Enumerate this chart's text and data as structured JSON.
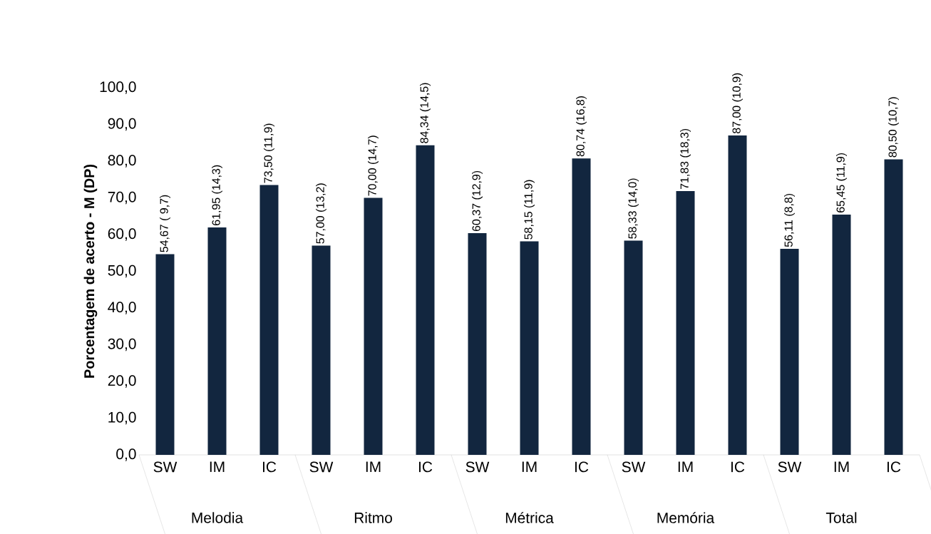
{
  "chart_data": {
    "type": "bar",
    "ylabel": "Porcentagem de acerto - M (DP)",
    "categories": [
      "SW",
      "IM",
      "IC",
      "SW",
      "IM",
      "IC",
      "SW",
      "IM",
      "IC",
      "SW",
      "IM",
      "IC",
      "SW",
      "IM",
      "IC"
    ],
    "values": [
      54.67,
      61.95,
      73.5,
      57.0,
      70.0,
      84.34,
      60.37,
      58.15,
      80.74,
      58.33,
      71.83,
      87.0,
      56.11,
      65.45,
      80.5
    ],
    "value_labels": [
      "54,67 ( 9,7)",
      "61,95 (14,3)",
      "73,50 (11,9)",
      "57,00 (13,2)",
      "70,00 (14,7)",
      "84,34 (14,5)",
      "60,37 (12,9)",
      "58,15 (11,9)",
      "80,74 (16,8)",
      "58,33 (14,0)",
      "71,83 (18,3)",
      "87,00 (10,9)",
      "56,11 (8,8)",
      "65,45 (11,9)",
      "80,50 (10,7)"
    ],
    "color": "#12263f",
    "annotations": [
      "Melodia",
      "Ritmo",
      "Métrica",
      "Memória",
      "Total"
    ],
    "ylim": [
      0,
      100
    ],
    "yticks": [
      {
        "value": 0,
        "label": "0,0"
      },
      {
        "value": 10,
        "label": "10,0"
      },
      {
        "value": 20,
        "label": "20,0"
      },
      {
        "value": 30,
        "label": "30,0"
      },
      {
        "value": 40,
        "label": "40,0"
      },
      {
        "value": 50,
        "label": "50,0"
      },
      {
        "value": 60,
        "label": "60,0"
      },
      {
        "value": 70,
        "label": "70,0"
      },
      {
        "value": 80,
        "label": "80,0"
      },
      {
        "value": 90,
        "label": "90,0"
      },
      {
        "value": 100,
        "label": "100,0"
      }
    ]
  }
}
